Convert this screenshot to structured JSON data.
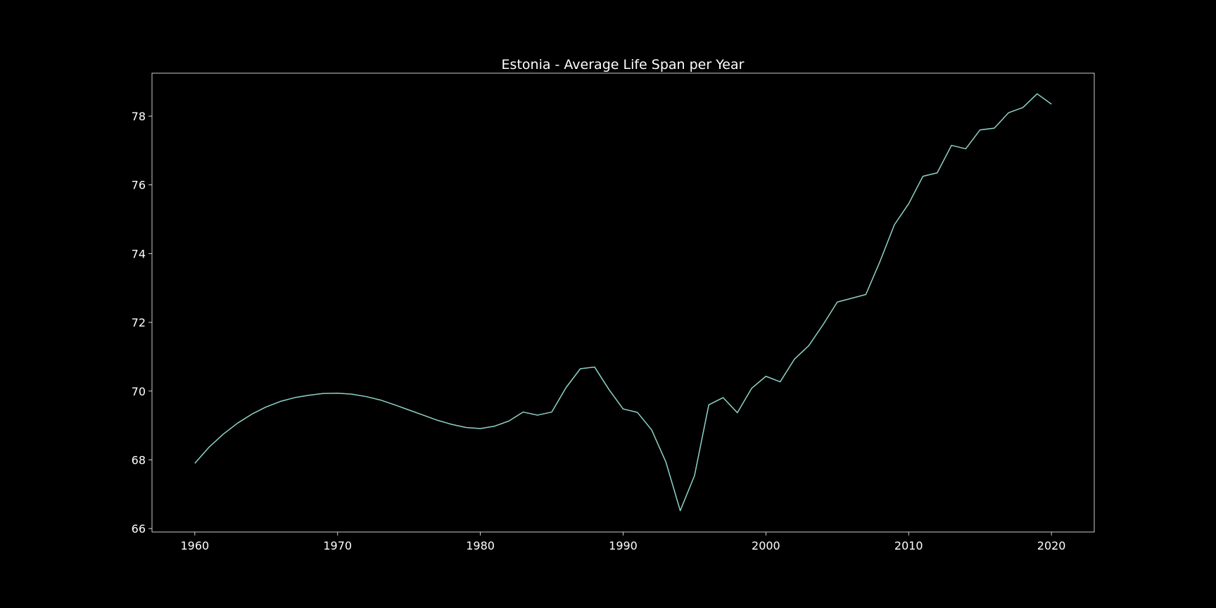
{
  "chart_data": {
    "type": "line",
    "title": "Estonia - Average Life Span per Year",
    "xlabel": "",
    "ylabel": "",
    "xlim": [
      1957,
      2023
    ],
    "ylim": [
      65.9,
      79.25
    ],
    "xticks": [
      1960,
      1970,
      1980,
      1990,
      2000,
      2010,
      2020
    ],
    "yticks": [
      66,
      68,
      70,
      72,
      74,
      76,
      78
    ],
    "grid": false,
    "legend": "none",
    "colors": {
      "background": "#000000",
      "line": "#8dd3c7",
      "axes": "#ffffff",
      "text": "#ffffff"
    },
    "series": [
      {
        "x": [
          1960,
          1961,
          1962,
          1963,
          1964,
          1965,
          1966,
          1967,
          1968,
          1969,
          1970,
          1971,
          1972,
          1973,
          1974,
          1975,
          1976,
          1977,
          1978,
          1979,
          1980,
          1981,
          1982,
          1983,
          1984,
          1985,
          1986,
          1987,
          1988,
          1989,
          1990,
          1991,
          1992,
          1993,
          1994,
          1995,
          1996,
          1997,
          1998,
          1999,
          2000,
          2001,
          2002,
          2003,
          2004,
          2005,
          2006,
          2007,
          2008,
          2009,
          2010,
          2011,
          2012,
          2013,
          2014,
          2015,
          2016,
          2017,
          2018,
          2019,
          2020
        ],
        "values": [
          67.9,
          68.37,
          68.75,
          69.07,
          69.33,
          69.54,
          69.7,
          69.81,
          69.88,
          69.93,
          69.94,
          69.91,
          69.84,
          69.74,
          69.6,
          69.45,
          69.3,
          69.15,
          69.03,
          68.94,
          68.91,
          68.98,
          69.13,
          69.39,
          69.3,
          69.39,
          70.1,
          70.65,
          70.7,
          70.05,
          69.48,
          69.38,
          68.87,
          67.93,
          66.52,
          67.54,
          69.6,
          69.81,
          69.37,
          70.08,
          70.43,
          70.27,
          70.93,
          71.32,
          71.93,
          72.59,
          72.7,
          72.81,
          73.78,
          74.84,
          75.45,
          76.25,
          76.35,
          77.15,
          77.05,
          77.6,
          77.65,
          78.1,
          78.25,
          78.65,
          78.35
        ]
      }
    ]
  }
}
